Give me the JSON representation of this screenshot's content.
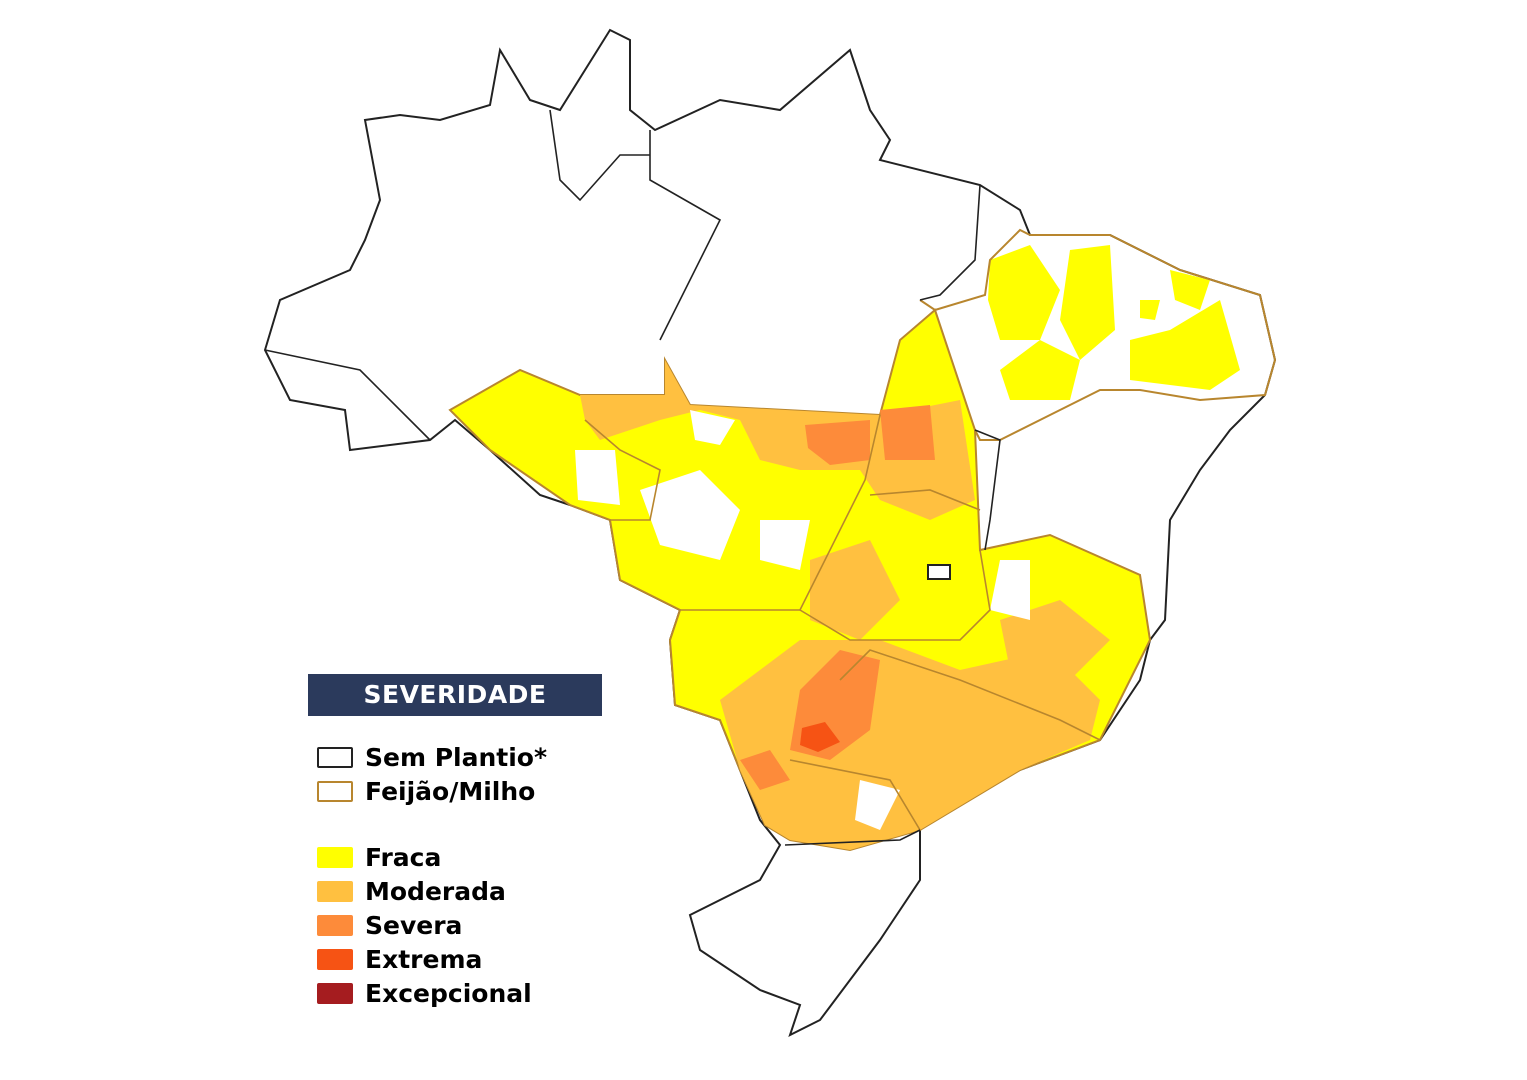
{
  "legend": {
    "title": "SEVERIDADE",
    "outline_items": [
      {
        "label": "Sem Plantio*",
        "stroke": "#222222"
      },
      {
        "label": "Feijão/Milho",
        "stroke": "#b8862e"
      }
    ],
    "severity_items": [
      {
        "label": "Fraca",
        "color": "#ffff00"
      },
      {
        "label": "Moderada",
        "color": "#ffc040"
      },
      {
        "label": "Severa",
        "color": "#fd8b3a"
      },
      {
        "label": "Extrema",
        "color": "#f65314"
      },
      {
        "label": "Excepcional",
        "color": "#a51c1f"
      }
    ]
  }
}
